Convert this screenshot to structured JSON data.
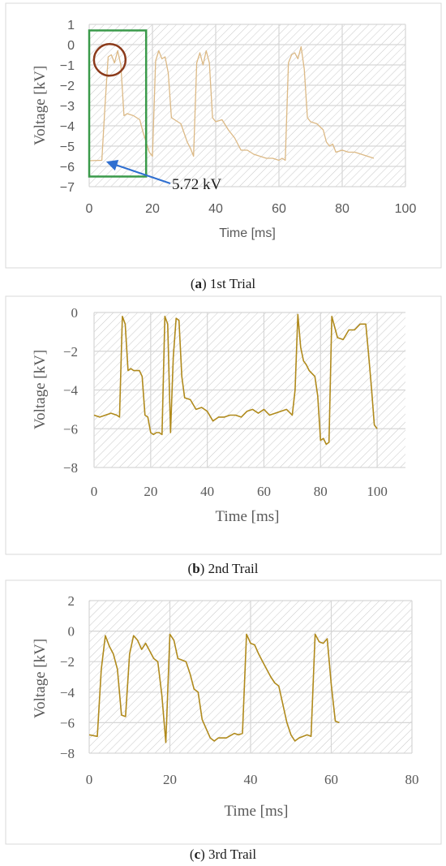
{
  "chart_data": [
    {
      "type": "line",
      "caption_label": "a",
      "caption_text": "1st Trial",
      "xlabel": "Time [ms]",
      "ylabel": "Voltage [kV]",
      "xlim": [
        0,
        100
      ],
      "ylim": [
        -7,
        1
      ],
      "xticks": [
        0,
        20,
        40,
        60,
        80,
        100
      ],
      "yticks": [
        1,
        0,
        -1,
        -2,
        -3,
        -4,
        -5,
        -6,
        -7
      ],
      "grid": true,
      "colors": {
        "line": "#dcb985",
        "box": "#3a9a4a",
        "circle": "#8b3a1a",
        "arrow": "#2f6fd0"
      },
      "annotation": {
        "text": "5.72 kV",
        "point": [
          5,
          -5.72
        ]
      },
      "highlight_box": {
        "x": [
          0,
          18
        ],
        "y": [
          -6.5,
          0.7
        ]
      },
      "highlight_circle": {
        "center": [
          6.5,
          -0.75
        ],
        "radius_x": 5
      },
      "series": [
        {
          "x": [
            0,
            4,
            5,
            6,
            7,
            8,
            9,
            10,
            11,
            12,
            14,
            16,
            17,
            18,
            19,
            20,
            21,
            22,
            23,
            24,
            25,
            26,
            27,
            29,
            31,
            32,
            33,
            34,
            35,
            36,
            37,
            38,
            39,
            40,
            42,
            44,
            46,
            48,
            50,
            52,
            54,
            56,
            58,
            60,
            61,
            62,
            63,
            64,
            65,
            66,
            67,
            68,
            69,
            70,
            72,
            74,
            75,
            76,
            77,
            78,
            80,
            82,
            84,
            86,
            88,
            90
          ],
          "y": [
            -5.72,
            -5.7,
            -3.0,
            -0.6,
            -0.5,
            -0.9,
            -0.3,
            -1.0,
            -3.5,
            -3.4,
            -3.5,
            -3.7,
            -4.3,
            -4.8,
            -5.3,
            -5.5,
            -0.8,
            -0.3,
            -0.7,
            -0.6,
            -1.4,
            -3.6,
            -3.7,
            -3.9,
            -4.8,
            -5.1,
            -5.5,
            -0.9,
            -0.4,
            -1.0,
            -0.3,
            -0.9,
            -3.6,
            -3.8,
            -3.7,
            -4.2,
            -4.6,
            -5.2,
            -5.2,
            -5.4,
            -5.5,
            -5.6,
            -5.6,
            -5.7,
            -5.6,
            -5.7,
            -0.9,
            -0.5,
            -0.4,
            -0.7,
            -0.1,
            -1.2,
            -3.6,
            -3.8,
            -3.9,
            -4.2,
            -4.8,
            -5.0,
            -4.9,
            -5.3,
            -5.2,
            -5.3,
            -5.3,
            -5.4,
            -5.5,
            -5.6
          ]
        }
      ]
    },
    {
      "type": "line",
      "caption_label": "b",
      "caption_text": "2nd Trail",
      "xlabel": "Time [ms]",
      "ylabel": "Voltage [kV]",
      "xlim": [
        0,
        110
      ],
      "ylim": [
        -8,
        0
      ],
      "xticks": [
        0,
        20,
        40,
        60,
        80,
        100
      ],
      "yticks": [
        0,
        -2,
        -4,
        -6,
        -8
      ],
      "grid": true,
      "colors": {
        "line": "#b08a1c"
      },
      "series": [
        {
          "x": [
            0,
            2,
            4,
            6,
            8,
            9,
            10,
            11,
            12,
            13,
            14,
            16,
            17,
            18,
            19,
            20,
            21,
            22,
            23,
            24,
            25,
            26,
            27,
            28,
            29,
            30,
            31,
            32,
            34,
            36,
            38,
            40,
            42,
            44,
            46,
            48,
            50,
            52,
            54,
            56,
            58,
            60,
            62,
            64,
            66,
            68,
            70,
            71,
            72,
            73,
            74,
            75,
            76,
            78,
            79,
            80,
            81,
            82,
            83,
            84,
            86,
            88,
            90,
            92,
            94,
            96,
            97,
            98,
            99,
            100
          ],
          "y": [
            -5.3,
            -5.4,
            -5.3,
            -5.2,
            -5.3,
            -5.4,
            -0.2,
            -0.6,
            -3.0,
            -2.9,
            -3.0,
            -3.0,
            -3.3,
            -5.3,
            -5.4,
            -6.2,
            -6.3,
            -6.2,
            -6.2,
            -6.3,
            -0.2,
            -0.6,
            -6.2,
            -2.3,
            -0.3,
            -0.4,
            -3.3,
            -4.4,
            -4.5,
            -5.0,
            -4.9,
            -5.1,
            -5.6,
            -5.4,
            -5.4,
            -5.3,
            -5.3,
            -5.4,
            -5.1,
            -5.0,
            -5.2,
            -5.0,
            -5.3,
            -5.2,
            -5.1,
            -5.0,
            -5.3,
            -4.0,
            -0.1,
            -1.8,
            -2.5,
            -2.7,
            -3.0,
            -3.3,
            -4.3,
            -6.6,
            -6.5,
            -6.8,
            -6.7,
            -0.2,
            -1.3,
            -1.4,
            -0.9,
            -0.9,
            -0.6,
            -0.6,
            -2.2,
            -3.9,
            -5.8,
            -6.0
          ]
        }
      ]
    },
    {
      "type": "line",
      "caption_label": "c",
      "caption_text": "3rd Trail",
      "xlabel": "Time [ms]",
      "ylabel": "Voltage [kV]",
      "xlim": [
        0,
        80
      ],
      "ylim": [
        -8,
        2
      ],
      "xticks": [
        0,
        20,
        40,
        60,
        80
      ],
      "yticks": [
        2,
        0,
        -2,
        -4,
        -6,
        -8
      ],
      "grid": true,
      "colors": {
        "line": "#b08a1c"
      },
      "series": [
        {
          "x": [
            0,
            2,
            3,
            4,
            5,
            6,
            7,
            8,
            9,
            10,
            11,
            12,
            13,
            14,
            15,
            16,
            17,
            18,
            19,
            20,
            21,
            22,
            23,
            24,
            25,
            26,
            27,
            28,
            29,
            30,
            31,
            32,
            34,
            36,
            37,
            38,
            39,
            40,
            41,
            42,
            43,
            44,
            45,
            46,
            47,
            48,
            49,
            50,
            51,
            52,
            54,
            55,
            56,
            57,
            58,
            59,
            60,
            61,
            62
          ],
          "y": [
            -6.8,
            -6.9,
            -2.5,
            -0.3,
            -1.0,
            -1.5,
            -2.5,
            -5.5,
            -5.6,
            -1.5,
            -0.3,
            -0.6,
            -1.2,
            -0.8,
            -1.3,
            -1.8,
            -2.0,
            -4.2,
            -7.3,
            -0.2,
            -0.6,
            -1.8,
            -1.9,
            -2.0,
            -2.8,
            -3.8,
            -4.0,
            -5.8,
            -6.4,
            -7.0,
            -7.2,
            -7.0,
            -7.0,
            -6.7,
            -6.8,
            -6.7,
            -0.2,
            -0.8,
            -0.9,
            -1.5,
            -2.0,
            -2.5,
            -3.0,
            -3.4,
            -3.6,
            -4.8,
            -6.0,
            -6.8,
            -7.2,
            -7.0,
            -6.8,
            -6.9,
            -0.2,
            -0.7,
            -0.8,
            -0.5,
            -3.5,
            -5.9,
            -6.0
          ]
        }
      ]
    }
  ]
}
